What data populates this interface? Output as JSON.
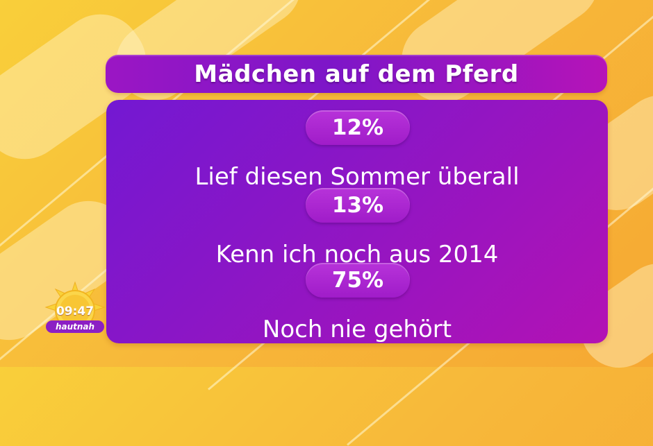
{
  "title": "Mädchen auf dem Pferd",
  "stats": [
    {
      "percent": "12%",
      "label": "Lief diesen Sommer überall"
    },
    {
      "percent": "13%",
      "label": "Kenn ich noch aus 2014"
    },
    {
      "percent": "75%",
      "label": "Noch nie gehört"
    }
  ],
  "logo": {
    "time": "09:47",
    "show": "hautnah"
  },
  "colors": {
    "background": "#f7b83a",
    "panel": "#8a16c6",
    "pill": "#a01cc9",
    "text": "#ffffff"
  }
}
